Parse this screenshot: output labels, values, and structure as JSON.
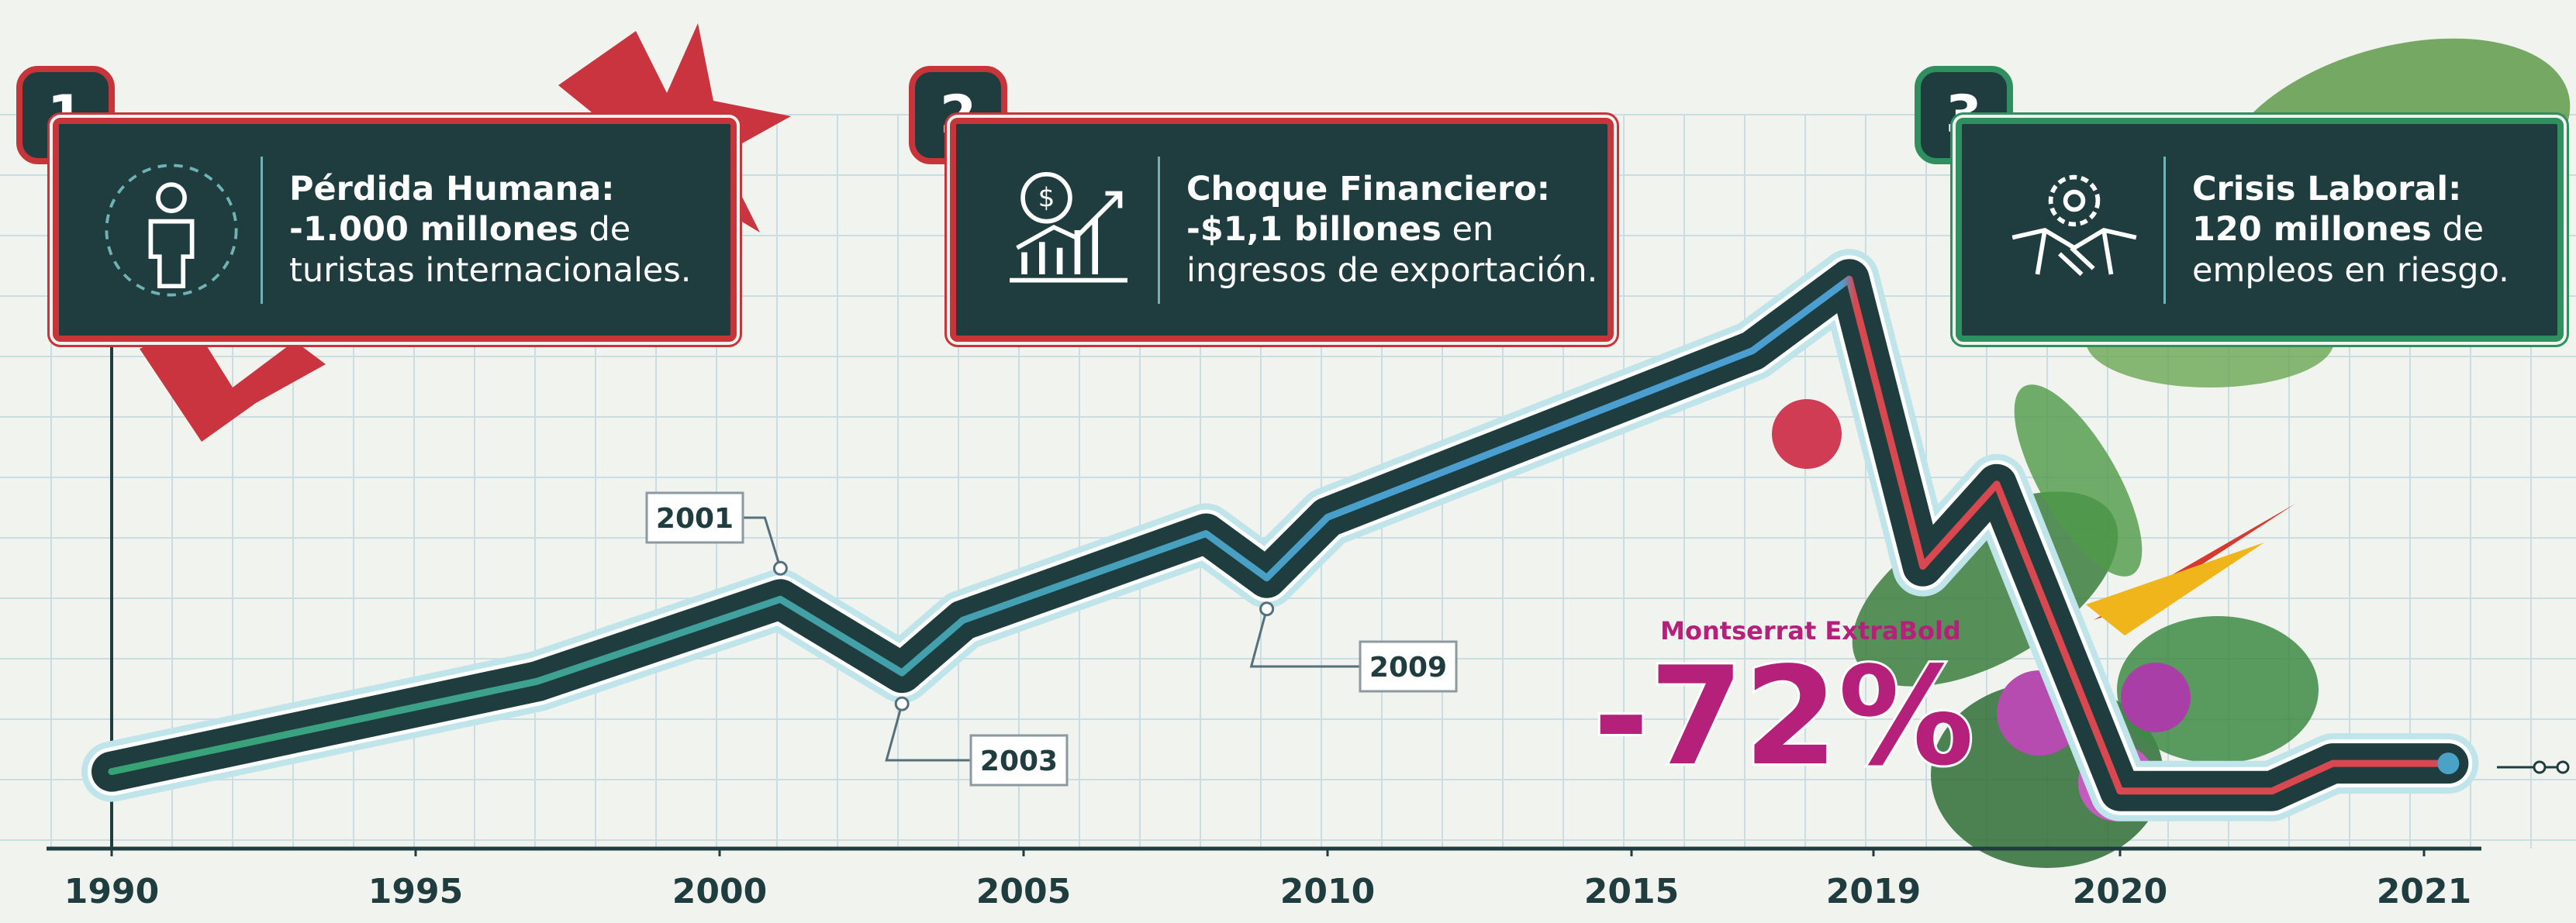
{
  "cards": [
    {
      "number": 1,
      "title": "Pérdida Humana:",
      "highlight": "-1.000 millones",
      "text": "de turistas internacionales."
    },
    {
      "number": 2,
      "title": "Choque Financiero:",
      "highlight": "-$1,1 billones",
      "text": "en ingresos de exportación."
    },
    {
      "number": 3,
      "title": "Crisis Laboral:",
      "highlight": "120 millones",
      "text": "de empleos en riesgo."
    }
  ],
  "chart_data": {
    "type": "line",
    "x": [
      1990,
      1997,
      2001,
      2003,
      2004,
      2008,
      2009,
      2010,
      2017,
      2018.6,
      2019.2,
      2019.5,
      2020,
      2020.5,
      2020.7,
      2021.08
    ],
    "series": [
      {
        "values": [
          198,
          430,
          641,
          452,
          587,
          810,
          696,
          852,
          1280,
          1464,
          726,
          937,
          148,
          148,
          219,
          219
        ],
        "color": "#1f3d3f"
      }
    ],
    "xticks": [
      1990,
      1995,
      2000,
      2005,
      2010,
      2015,
      2019,
      2020,
      2021
    ],
    "ylim": [
      0,
      1600
    ],
    "annotations": [
      {
        "text": "2001"
      },
      {
        "text": "2003"
      },
      {
        "text": "2009"
      },
      {
        "text": "Montserrat ExtraBold",
        "color": "#b5207a"
      },
      {
        "text": "-72%",
        "color": "#b5207a"
      }
    ]
  }
}
